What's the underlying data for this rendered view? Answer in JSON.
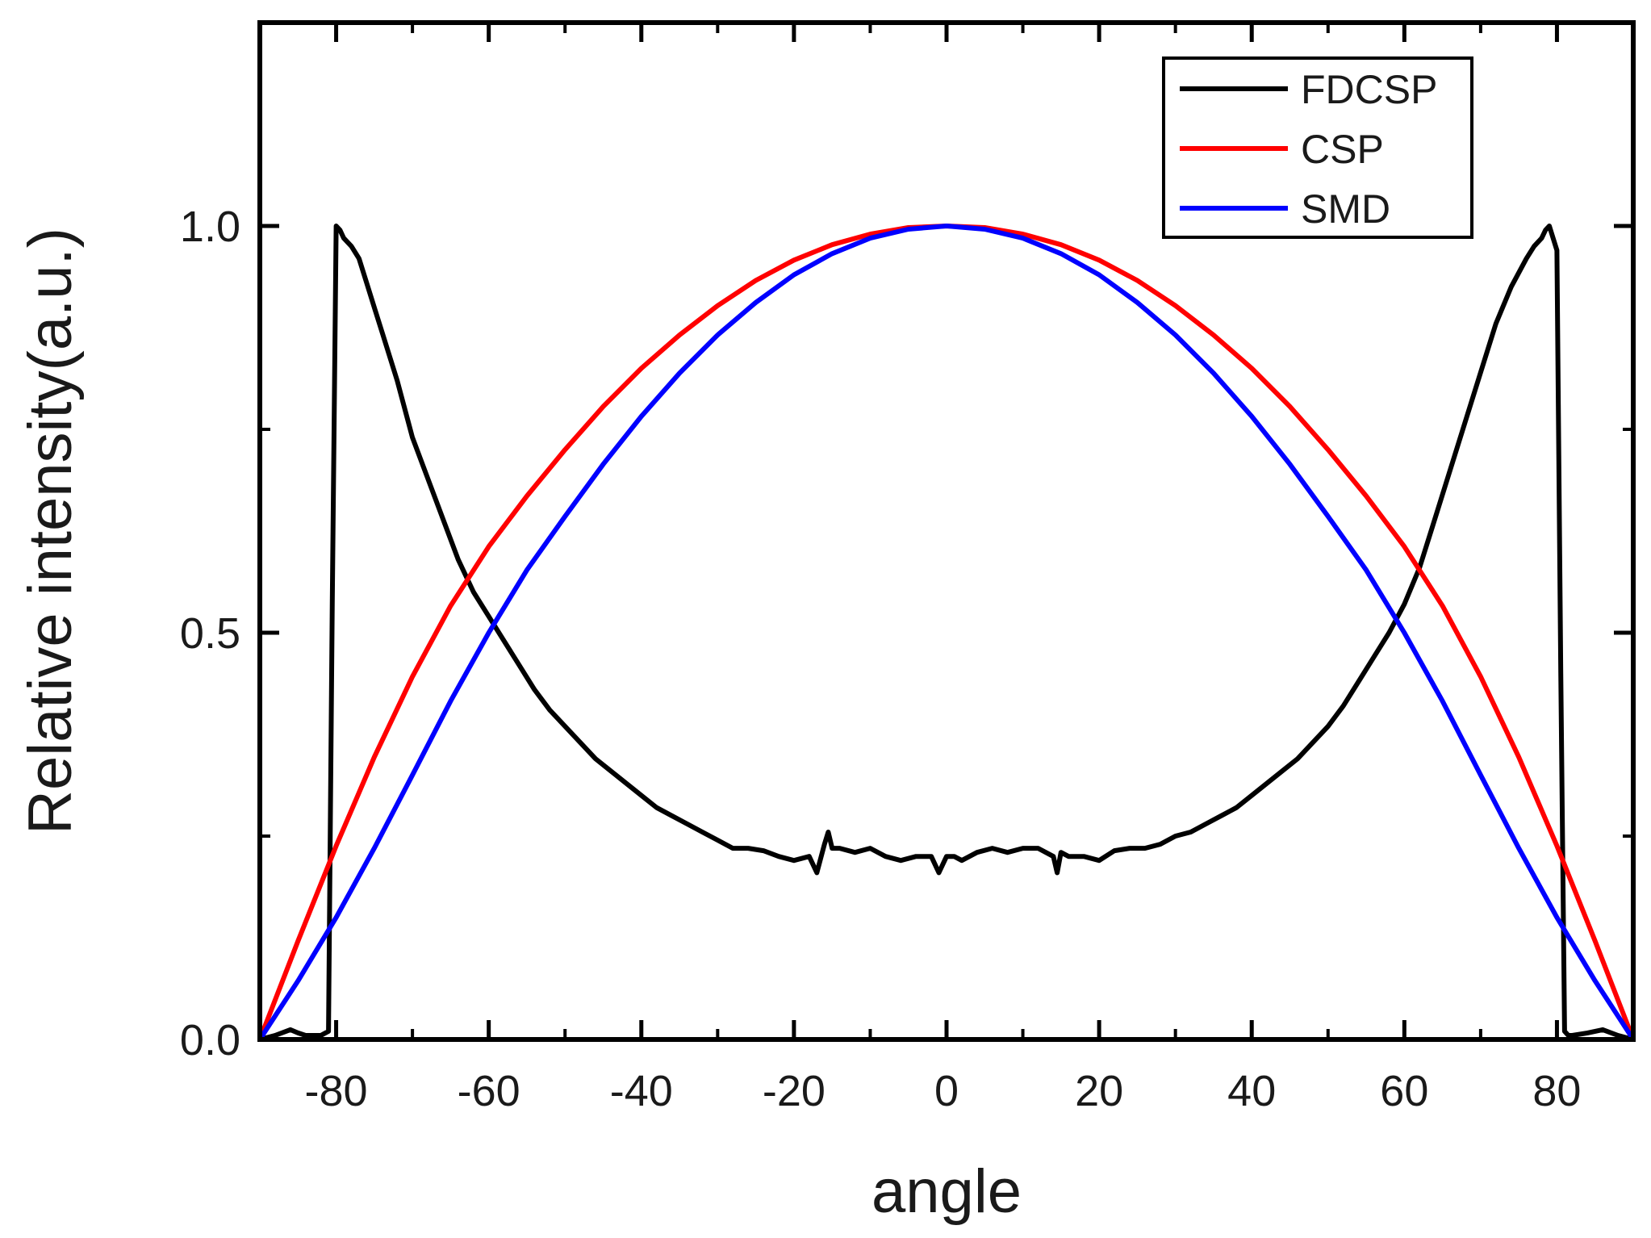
{
  "chart_data": {
    "type": "line",
    "title": "",
    "xlabel": "angle",
    "ylabel": "Relative intensity(a.u.)",
    "xlim": [
      -90,
      90
    ],
    "ylim": [
      0.0,
      1.25
    ],
    "x_major_ticks": [
      -80,
      -60,
      -40,
      -20,
      0,
      20,
      40,
      60,
      80
    ],
    "x_tick_labels": [
      "-80",
      "-60",
      "-40",
      "-20",
      "0",
      "20",
      "40",
      "60",
      "80"
    ],
    "x_minor_ticks": [
      -90,
      -70,
      -50,
      -30,
      -10,
      10,
      30,
      50,
      70,
      90
    ],
    "y_major_ticks": [
      0.0,
      0.5,
      1.0
    ],
    "y_tick_labels": [
      "0.0",
      "0.5",
      "1.0"
    ],
    "y_minor_ticks": [
      0.25,
      0.75
    ],
    "grid": false,
    "legend_position": "top-right",
    "series": [
      {
        "name": "FDCSP",
        "color": "#000000",
        "x": [
          -90,
          -88,
          -86,
          -85,
          -84,
          -82,
          -81,
          -80.5,
          -80,
          -79.5,
          -79,
          -78,
          -77,
          -76,
          -75,
          -74,
          -72,
          -70,
          -68,
          -66,
          -64,
          -62,
          -60,
          -58,
          -56,
          -54,
          -52,
          -50,
          -48,
          -46,
          -44,
          -42,
          -40,
          -38,
          -36,
          -34,
          -32,
          -30,
          -28,
          -26,
          -24,
          -22,
          -20,
          -18,
          -17,
          -16,
          -15.5,
          -15,
          -14,
          -12,
          -10,
          -8,
          -6,
          -4,
          -2,
          -1,
          0,
          1,
          2,
          4,
          6,
          8,
          10,
          12,
          14,
          14.5,
          15,
          16,
          18,
          20,
          22,
          24,
          26,
          28,
          30,
          32,
          34,
          36,
          38,
          40,
          42,
          44,
          46,
          48,
          50,
          52,
          54,
          56,
          58,
          60,
          62,
          64,
          66,
          68,
          70,
          72,
          74,
          76,
          77,
          78,
          78.5,
          79,
          79.5,
          80,
          80.5,
          81,
          81.5,
          82,
          84,
          86,
          88,
          90
        ],
        "values": [
          0.0,
          0.005,
          0.012,
          0.008,
          0.005,
          0.005,
          0.01,
          0.54,
          1.0,
          0.995,
          0.985,
          0.975,
          0.96,
          0.93,
          0.9,
          0.87,
          0.81,
          0.74,
          0.69,
          0.64,
          0.59,
          0.55,
          0.52,
          0.49,
          0.46,
          0.43,
          0.405,
          0.385,
          0.365,
          0.345,
          0.33,
          0.315,
          0.3,
          0.285,
          0.275,
          0.265,
          0.255,
          0.245,
          0.235,
          0.235,
          0.232,
          0.225,
          0.22,
          0.225,
          0.205,
          0.24,
          0.255,
          0.235,
          0.235,
          0.23,
          0.235,
          0.225,
          0.22,
          0.225,
          0.225,
          0.205,
          0.225,
          0.225,
          0.22,
          0.23,
          0.235,
          0.23,
          0.235,
          0.235,
          0.225,
          0.205,
          0.23,
          0.225,
          0.225,
          0.22,
          0.232,
          0.235,
          0.235,
          0.24,
          0.25,
          0.255,
          0.265,
          0.275,
          0.285,
          0.3,
          0.315,
          0.33,
          0.345,
          0.365,
          0.385,
          0.41,
          0.44,
          0.47,
          0.5,
          0.535,
          0.58,
          0.64,
          0.7,
          0.76,
          0.82,
          0.88,
          0.925,
          0.96,
          0.975,
          0.985,
          0.995,
          1.0,
          0.985,
          0.97,
          0.45,
          0.01,
          0.005,
          0.005,
          0.008,
          0.012,
          0.005,
          0.0
        ]
      },
      {
        "name": "CSP",
        "color": "#ff0000",
        "x": [
          -90,
          -85,
          -80,
          -75,
          -70,
          -65,
          -60,
          -55,
          -50,
          -45,
          -40,
          -35,
          -30,
          -25,
          -20,
          -15,
          -10,
          -5,
          0,
          5,
          10,
          15,
          20,
          25,
          30,
          35,
          40,
          45,
          50,
          55,
          60,
          65,
          70,
          75,
          80,
          85,
          90
        ],
        "values": [
          0.0,
          0.121,
          0.238,
          0.347,
          0.446,
          0.533,
          0.606,
          0.668,
          0.725,
          0.778,
          0.825,
          0.866,
          0.902,
          0.933,
          0.958,
          0.977,
          0.99,
          0.998,
          1.0,
          0.998,
          0.99,
          0.977,
          0.958,
          0.933,
          0.902,
          0.866,
          0.825,
          0.778,
          0.725,
          0.668,
          0.606,
          0.533,
          0.446,
          0.347,
          0.238,
          0.121,
          0.0
        ]
      },
      {
        "name": "SMD",
        "color": "#0000ff",
        "x": [
          -90,
          -85,
          -80,
          -75,
          -70,
          -65,
          -60,
          -55,
          -50,
          -45,
          -40,
          -35,
          -30,
          -25,
          -20,
          -15,
          -10,
          -5,
          0,
          5,
          10,
          15,
          20,
          25,
          30,
          35,
          40,
          45,
          50,
          55,
          60,
          65,
          70,
          75,
          80,
          85,
          90
        ],
        "values": [
          0.0,
          0.072,
          0.15,
          0.235,
          0.325,
          0.416,
          0.5,
          0.577,
          0.643,
          0.707,
          0.766,
          0.819,
          0.866,
          0.906,
          0.94,
          0.966,
          0.985,
          0.996,
          1.0,
          0.996,
          0.985,
          0.966,
          0.94,
          0.906,
          0.866,
          0.819,
          0.766,
          0.707,
          0.643,
          0.577,
          0.5,
          0.416,
          0.325,
          0.235,
          0.15,
          0.072,
          0.0
        ]
      }
    ]
  }
}
